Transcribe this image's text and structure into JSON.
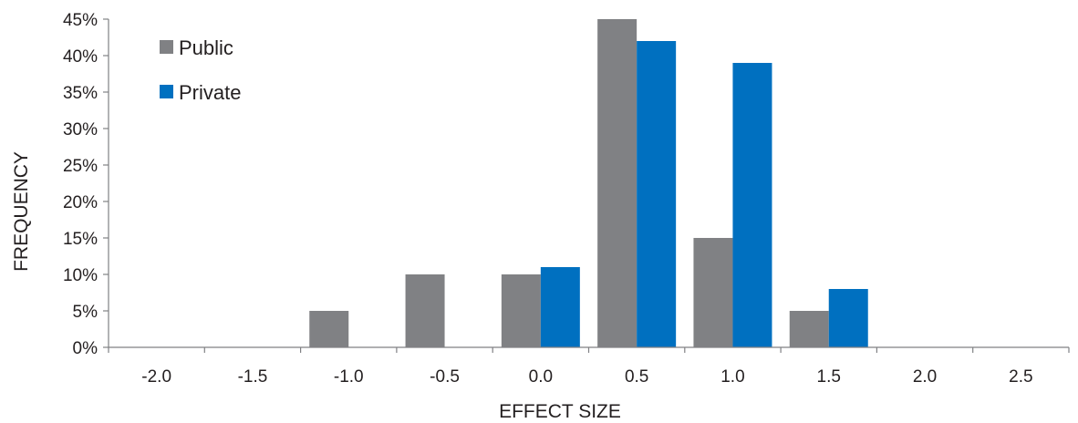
{
  "chart_data": {
    "type": "bar",
    "xlabel": "EFFECT SIZE",
    "ylabel": "FREQUENCY",
    "categories": [
      "-2.0",
      "-1.5",
      "-1.0",
      "-0.5",
      "0.0",
      "0.5",
      "1.0",
      "1.5",
      "2.0",
      "2.5"
    ],
    "series": [
      {
        "name": "Public",
        "color": "#808184",
        "values": [
          0,
          0,
          5,
          10,
          10,
          45,
          15,
          5,
          0,
          0
        ]
      },
      {
        "name": "Private",
        "color": "#0070c0",
        "values": [
          0,
          0,
          0,
          0,
          11,
          42,
          39,
          8,
          0,
          0
        ]
      }
    ],
    "ylim": [
      0,
      45
    ],
    "yticks": [
      "0%",
      "5%",
      "10%",
      "15%",
      "20%",
      "25%",
      "30%",
      "35%",
      "40%",
      "45%"
    ],
    "grid": false,
    "legend_position": "top-left"
  }
}
